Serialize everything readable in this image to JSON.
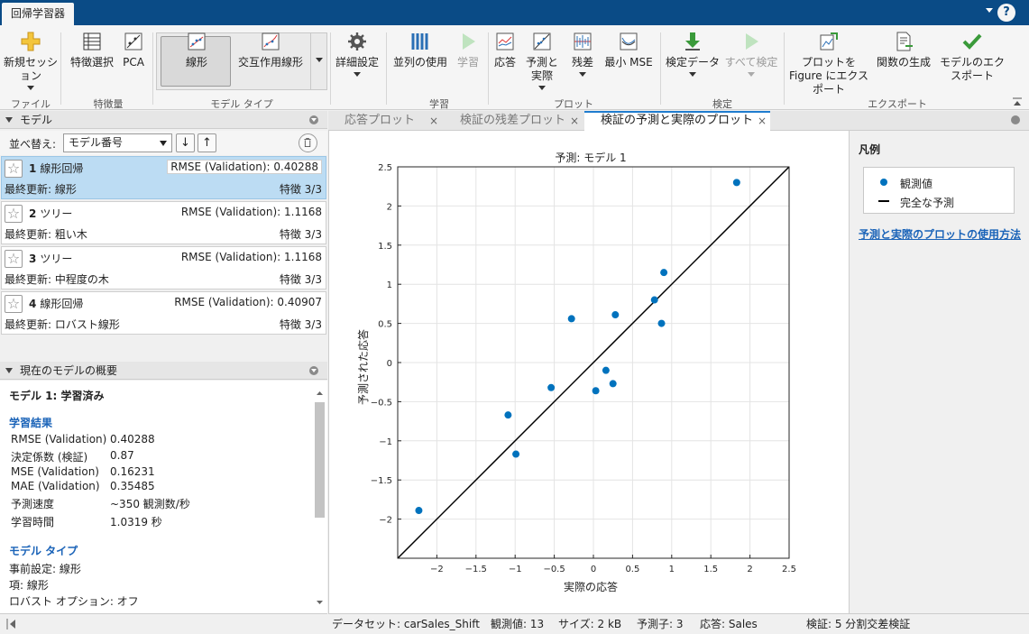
{
  "app": {
    "tab": "回帰学習器",
    "help": "?"
  },
  "ribbon": {
    "buttons": {
      "new_session": "新規セッション",
      "feature_selection": "特徴選択",
      "pca": "PCA",
      "linear": "線形",
      "interactions_linear": "交互作用線形",
      "advanced": "詳細設定",
      "use_parallel": "並列の使用",
      "train": "学習",
      "response": "応答",
      "predicted_actual": "予測と実際",
      "residuals": "残差",
      "min_mse": "最小 MSE",
      "test_data": "検定データ",
      "test_all": "すべて検定",
      "export_plot": "プロットを Figure にエクスポート",
      "generate_function": "関数の生成",
      "export_model": "モデルのエクスポート"
    },
    "groups": {
      "file": "ファイル",
      "features": "特徴量",
      "model_type": "モデル タイプ",
      "training": "学習",
      "plots": "プロット",
      "test": "検定",
      "export": "エクスポート"
    }
  },
  "models_panel": {
    "title": "モデル",
    "sort_label": "並べ替え:",
    "sort_value": "モデル番号",
    "models": [
      {
        "num": "1",
        "type": "線形回帰",
        "rmse": "RMSE (Validation): 0.40288",
        "updated": "最終更新: 線形",
        "features": "特徴 3/3"
      },
      {
        "num": "2",
        "type": "ツリー",
        "rmse": "RMSE (Validation): 1.1168",
        "updated": "最終更新: 粗い木",
        "features": "特徴 3/3"
      },
      {
        "num": "3",
        "type": "ツリー",
        "rmse": "RMSE (Validation): 1.1168",
        "updated": "最終更新: 中程度の木",
        "features": "特徴 3/3"
      },
      {
        "num": "4",
        "type": "線形回帰",
        "rmse": "RMSE (Validation): 0.40907",
        "updated": "最終更新: ロバスト線形",
        "features": "特徴 3/3"
      }
    ]
  },
  "summary_panel": {
    "title": "現在のモデルの概要",
    "model_title": "モデル 1: 学習済み",
    "results_heading": "学習結果",
    "results": [
      {
        "k": "RMSE (Validation)",
        "v": "0.40288"
      },
      {
        "k": "決定係数 (検証)",
        "v": "0.87"
      },
      {
        "k": "MSE (Validation)",
        "v": "0.16231"
      },
      {
        "k": "MAE (Validation)",
        "v": "0.35485"
      },
      {
        "k": "予測速度",
        "v": "~350 観測数/秒"
      },
      {
        "k": "学習時間",
        "v": "1.0319 秒"
      }
    ],
    "type_heading": "モデル タイプ",
    "type_lines": [
      "事前設定: 線形",
      "項: 線形",
      "ロバスト オプション: オフ"
    ]
  },
  "doc_tabs": [
    "応答プロット",
    "検証の残差プロット",
    "検証の予測と実際のプロット"
  ],
  "legend": {
    "title": "凡例",
    "observations": "観測値",
    "perfect": "完全な予測",
    "help_link": "予測と実際のプロットの使用方法"
  },
  "status": {
    "dataset": "データセット: carSales_Shift",
    "observations": "観測値: 13",
    "size": "サイズ: 2 kB",
    "predictors": "予測子: 3",
    "response": "応答: Sales",
    "validation": "検証: 5 分割交差検証"
  },
  "colors": {
    "accent": "#0a4b86",
    "marker": "#0072bd",
    "link": "#1a63b8",
    "selected": "#bcdcf3"
  },
  "chart_data": {
    "type": "scatter",
    "title": "予測: モデル 1",
    "xlabel": "実際の応答",
    "ylabel": "予測された応答",
    "xlim": [
      -2.5,
      2.5
    ],
    "ylim": [
      -2.5,
      2.5
    ],
    "xticks": [
      -2,
      -1.5,
      -1,
      -0.5,
      0,
      0.5,
      1,
      1.5,
      2,
      2.5
    ],
    "yticks": [
      -2,
      -1.5,
      -1,
      -0.5,
      0,
      0.5,
      1,
      1.5,
      2,
      2.5
    ],
    "grid": true,
    "series": [
      {
        "name": "観測値",
        "x": [
          -2.23,
          -1.09,
          -0.99,
          -0.54,
          -0.28,
          0.03,
          0.16,
          0.25,
          0.28,
          0.78,
          0.87,
          0.9,
          1.83
        ],
        "y": [
          -1.89,
          -0.67,
          -1.17,
          -0.32,
          0.56,
          -0.36,
          -0.1,
          -0.27,
          0.61,
          0.8,
          0.5,
          1.15,
          2.3
        ]
      },
      {
        "name": "完全な予測",
        "x": [
          -2.5,
          2.5
        ],
        "y": [
          -2.5,
          2.5
        ]
      }
    ]
  }
}
